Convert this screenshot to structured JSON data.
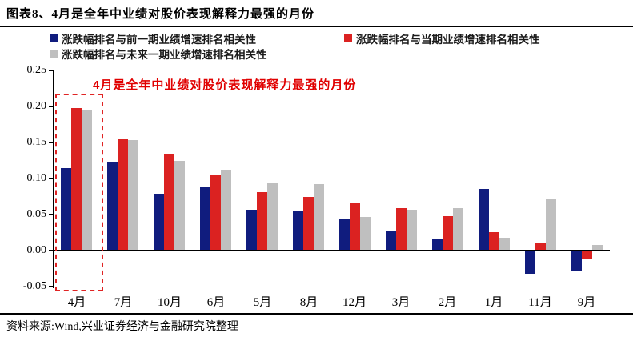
{
  "header": {
    "title": "图表8、4月是全年中业绩对股价表现解释力最强的月份"
  },
  "legend": [
    {
      "label": "涨跌幅排名与前一期业绩增速排名相关性",
      "color": "#101c7e",
      "marker": "square-icon"
    },
    {
      "label": "涨跌幅排名与当期业绩增速排名相关性",
      "color": "#db2221",
      "marker": "square-icon"
    },
    {
      "label": "涨跌幅排名与未来一期业绩增速排名相关性",
      "color": "#bfbfbf",
      "marker": "square-icon"
    }
  ],
  "annotation": {
    "text": "4月是全年中业绩对股价表现解释力最强的月份",
    "color": "#e00000",
    "highlight_style": "red-dashed-box",
    "highlighted_category": "4月"
  },
  "chart_data": {
    "type": "bar",
    "title": "图表8、4月是全年中业绩对股价表现解释力最强的月份",
    "categories": [
      "4月",
      "7月",
      "10月",
      "6月",
      "5月",
      "8月",
      "12月",
      "3月",
      "2月",
      "1月",
      "11月",
      "9月"
    ],
    "series": [
      {
        "name": "涨跌幅排名与前一期业绩增速排名相关性",
        "color": "#101c7e",
        "values": [
          0.114,
          0.122,
          0.079,
          0.088,
          0.057,
          0.055,
          0.044,
          0.027,
          0.017,
          0.086,
          -0.032,
          -0.029
        ]
      },
      {
        "name": "涨跌幅排名与当期业绩增速排名相关性",
        "color": "#db2221",
        "values": [
          0.198,
          0.154,
          0.133,
          0.106,
          0.081,
          0.074,
          0.065,
          0.059,
          0.048,
          0.026,
          0.01,
          -0.011
        ]
      },
      {
        "name": "涨跌幅排名与未来一期业绩增速排名相关性",
        "color": "#bfbfbf",
        "values": [
          0.194,
          0.153,
          0.124,
          0.112,
          0.093,
          0.092,
          0.047,
          0.057,
          0.059,
          0.018,
          0.072,
          0.008
        ]
      }
    ],
    "xlabel": "",
    "ylabel": "",
    "ylim": [
      -0.05,
      0.25
    ],
    "ytick_labels": [
      "0.25",
      "0.20",
      "0.15",
      "0.10",
      "0.05",
      "0.00",
      "-0.05"
    ],
    "yticks": [
      0.25,
      0.2,
      0.15,
      0.1,
      0.05,
      0.0,
      -0.05
    ],
    "grid": false,
    "legend_position": "top"
  },
  "footer": {
    "source": "资料来源:Wind,兴业证券经济与金融研究院整理"
  }
}
